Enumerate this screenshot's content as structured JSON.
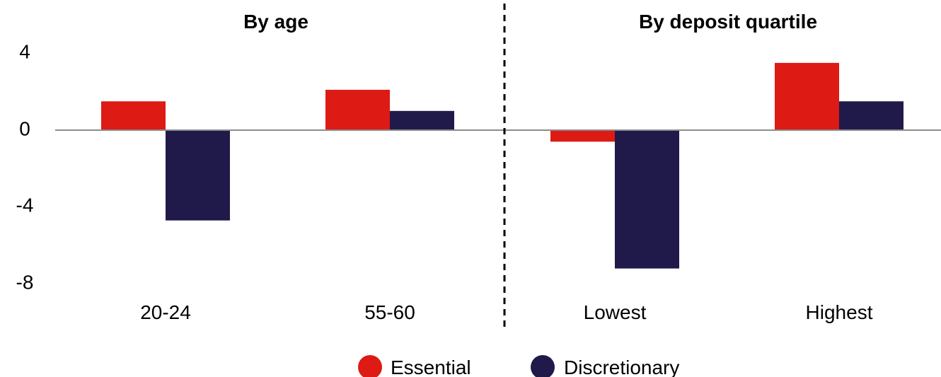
{
  "chart_data": {
    "type": "bar",
    "panels": [
      {
        "title": "By age",
        "categories": [
          "20-24",
          "55-60"
        ]
      },
      {
        "title": "By deposit quartile",
        "categories": [
          "Lowest",
          "Highest"
        ]
      }
    ],
    "categories": [
      "20-24",
      "55-60",
      "Lowest",
      "Highest"
    ],
    "series": [
      {
        "name": "Essential",
        "color": "#dd1a14",
        "values": [
          1.5,
          2.1,
          -0.6,
          3.5
        ]
      },
      {
        "name": "Discretionary",
        "color": "#201a4a",
        "values": [
          -4.7,
          1.0,
          -7.2,
          1.5
        ]
      }
    ],
    "yticks": [
      "4",
      "0",
      "-4",
      "-8"
    ],
    "ylim": [
      -8,
      4
    ],
    "legend": "bottom-center",
    "grid": false,
    "panel_separator": "dashed vertical line"
  }
}
